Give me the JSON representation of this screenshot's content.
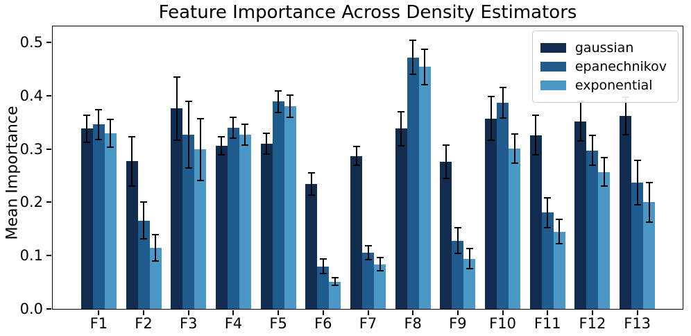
{
  "figure": {
    "title": "Feature Importance Across Density Estimators",
    "ylabel": "Mean Importance"
  },
  "chart_data": {
    "type": "bar",
    "title": "Feature Importance Across Density Estimators",
    "xlabel": "",
    "ylabel": "Mean Importance",
    "categories": [
      "F1",
      "F2",
      "F3",
      "F4",
      "F5",
      "F6",
      "F7",
      "F8",
      "F9",
      "F10",
      "F11",
      "F12",
      "F13"
    ],
    "series": [
      {
        "name": "gaussian",
        "color": "#112c4e",
        "values": [
          0.338,
          0.277,
          0.376,
          0.306,
          0.31,
          0.234,
          0.287,
          0.338,
          0.276,
          0.357,
          0.326,
          0.352,
          0.362
        ],
        "errors": [
          0.025,
          0.046,
          0.059,
          0.017,
          0.019,
          0.021,
          0.018,
          0.032,
          0.031,
          0.041,
          0.037,
          0.037,
          0.035
        ]
      },
      {
        "name": "epanechnikov",
        "color": "#1f5c8d",
        "values": [
          0.346,
          0.166,
          0.327,
          0.34,
          0.389,
          0.08,
          0.106,
          0.472,
          0.128,
          0.387,
          0.181,
          0.297,
          0.237
        ],
        "errors": [
          0.028,
          0.034,
          0.062,
          0.019,
          0.02,
          0.014,
          0.013,
          0.032,
          0.024,
          0.029,
          0.028,
          0.028,
          0.042
        ]
      },
      {
        "name": "exponential",
        "color": "#4b97c5",
        "values": [
          0.33,
          0.115,
          0.299,
          0.327,
          0.38,
          0.051,
          0.084,
          0.454,
          0.094,
          0.301,
          0.145,
          0.257,
          0.2
        ],
        "errors": [
          0.026,
          0.025,
          0.058,
          0.02,
          0.021,
          0.007,
          0.012,
          0.033,
          0.019,
          0.027,
          0.023,
          0.027,
          0.037
        ]
      }
    ],
    "error_bar_color": "#000000",
    "yticks": [
      "0.0",
      "0.1",
      "0.2",
      "0.3",
      "0.4",
      "0.5"
    ],
    "ytick_values": [
      0.0,
      0.1,
      0.2,
      0.3,
      0.4,
      0.5
    ],
    "ylim": [
      0,
      0.53
    ],
    "grid": false,
    "legend_position": "upper right",
    "legend_entries": [
      "gaussian",
      "epanechnikov",
      "exponential"
    ]
  }
}
